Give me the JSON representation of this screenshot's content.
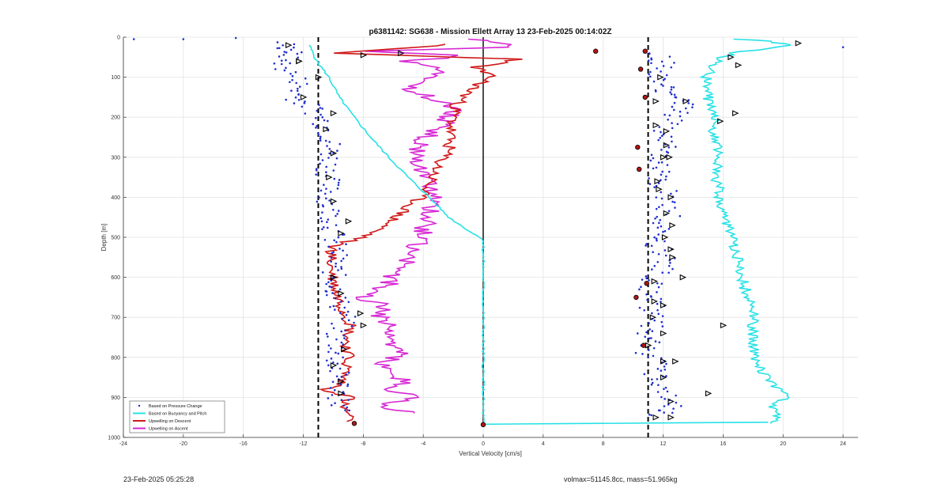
{
  "chart_data": {
    "type": "line",
    "title": "p6381142: SG638 - Mission Ellett Array 13 23-Feb-2025 00:14:02Z",
    "xlabel": "Vertical Velocity [cm/s]",
    "ylabel": "Depth [m]",
    "xlim": [
      -24,
      25
    ],
    "ylim": [
      0,
      1000
    ],
    "y_reversed": true,
    "xticks": [
      -24,
      -20,
      -16,
      -12,
      -8,
      -4,
      0,
      4,
      8,
      12,
      16,
      20,
      24
    ],
    "yticks": [
      0,
      100,
      200,
      300,
      400,
      500,
      600,
      700,
      800,
      900,
      1000
    ],
    "grid": true,
    "legend_placement": "bottom-left",
    "reference_lines": [
      {
        "x": -11,
        "style": "dashed",
        "color": "#000000"
      },
      {
        "x": 11,
        "style": "dashed",
        "color": "#000000"
      },
      {
        "x": 0,
        "style": "solid",
        "color": "#000000",
        "y_range": [
          0,
          970
        ]
      }
    ],
    "series": [
      {
        "name": "Based on Pressure Change",
        "color": "#1f2fd0",
        "style": "points",
        "descent": [
          [
            -13.3,
            15
          ],
          [
            -12.8,
            40
          ],
          [
            -13.5,
            70
          ],
          [
            -12.2,
            110
          ],
          [
            -12.5,
            150
          ],
          [
            -11.3,
            180
          ],
          [
            -10.5,
            220
          ],
          [
            -10.2,
            260
          ],
          [
            -10.2,
            300
          ],
          [
            -10.4,
            340
          ],
          [
            -10.3,
            380
          ],
          [
            -10.3,
            420
          ],
          [
            -10.0,
            460
          ],
          [
            -10.0,
            500
          ],
          [
            -9.8,
            540
          ],
          [
            -10.0,
            580
          ],
          [
            -9.9,
            620
          ],
          [
            -9.7,
            660
          ],
          [
            -9.2,
            700
          ],
          [
            -9.8,
            740
          ],
          [
            -9.7,
            780
          ],
          [
            -9.9,
            820
          ],
          [
            -9.5,
            860
          ],
          [
            -9.6,
            900
          ],
          [
            -9.5,
            940
          ]
        ],
        "ascent": [
          [
            11.5,
            40
          ],
          [
            12.0,
            70
          ],
          [
            11.7,
            110
          ],
          [
            12.0,
            140
          ],
          [
            13.5,
            170
          ],
          [
            12.8,
            200
          ],
          [
            12.0,
            240
          ],
          [
            12.3,
            280
          ],
          [
            11.5,
            320
          ],
          [
            11.8,
            360
          ],
          [
            12.4,
            400
          ],
          [
            12.3,
            440
          ],
          [
            11.9,
            480
          ],
          [
            11.7,
            520
          ],
          [
            12.2,
            560
          ],
          [
            11.3,
            600
          ],
          [
            11.3,
            640
          ],
          [
            11.3,
            680
          ],
          [
            11.4,
            720
          ],
          [
            11.0,
            760
          ],
          [
            11.1,
            800
          ],
          [
            11.6,
            840
          ],
          [
            12.0,
            880
          ],
          [
            12.4,
            920
          ],
          [
            11.5,
            950
          ]
        ],
        "outliers": [
          [
            -23.3,
            5
          ],
          [
            -20.0,
            5
          ],
          [
            -16.5,
            2
          ],
          [
            24.0,
            25
          ]
        ]
      },
      {
        "name": "Based on Buoyancy and Pitch",
        "color": "#27e1e6",
        "style": "line",
        "descent": [
          [
            -11.6,
            20
          ],
          [
            -11.1,
            60
          ],
          [
            -10.3,
            100
          ],
          [
            -9.6,
            150
          ],
          [
            -8.6,
            200
          ],
          [
            -7.5,
            250
          ],
          [
            -6.3,
            300
          ],
          [
            -5.0,
            350
          ],
          [
            -3.6,
            400
          ],
          [
            -2.3,
            450
          ],
          [
            -0.7,
            490
          ],
          [
            0.0,
            505
          ],
          [
            0.0,
            600
          ],
          [
            0.0,
            700
          ],
          [
            0.0,
            800
          ],
          [
            0.0,
            900
          ],
          [
            0.0,
            968
          ]
        ],
        "ascent": [
          [
            19.0,
            965
          ],
          [
            19.5,
            950
          ],
          [
            19.2,
            920
          ],
          [
            20.1,
            900
          ],
          [
            19.8,
            880
          ],
          [
            18.8,
            850
          ],
          [
            18.2,
            800
          ],
          [
            17.9,
            750
          ],
          [
            18.1,
            700
          ],
          [
            17.6,
            650
          ],
          [
            17.3,
            600
          ],
          [
            17.0,
            550
          ],
          [
            16.6,
            500
          ],
          [
            16.1,
            450
          ],
          [
            15.8,
            400
          ],
          [
            15.5,
            350
          ],
          [
            15.8,
            300
          ],
          [
            15.4,
            250
          ],
          [
            15.5,
            200
          ],
          [
            15.0,
            150
          ],
          [
            14.9,
            100
          ],
          [
            15.6,
            60
          ],
          [
            16.5,
            40
          ],
          [
            20.3,
            20
          ],
          [
            19.0,
            10
          ],
          [
            16.7,
            5
          ]
        ]
      },
      {
        "name": "Upwelling on Descent",
        "color": "#d01818",
        "style": "line",
        "values": [
          [
            -2.2,
            18
          ],
          [
            -10.0,
            40
          ],
          [
            2.5,
            55
          ],
          [
            -0.5,
            75
          ],
          [
            0.5,
            100
          ],
          [
            -0.8,
            130
          ],
          [
            -1.8,
            170
          ],
          [
            -2.0,
            200
          ],
          [
            -2.2,
            240
          ],
          [
            -2.3,
            280
          ],
          [
            -3.0,
            320
          ],
          [
            -3.5,
            360
          ],
          [
            -4.2,
            400
          ],
          [
            -5.5,
            440
          ],
          [
            -6.5,
            470
          ],
          [
            -8.0,
            500
          ],
          [
            -10.0,
            520
          ],
          [
            -10.2,
            560
          ],
          [
            -10.0,
            600
          ],
          [
            -9.8,
            640
          ],
          [
            -9.3,
            680
          ],
          [
            -8.8,
            720
          ],
          [
            -9.1,
            760
          ],
          [
            -9.0,
            800
          ],
          [
            -9.2,
            840
          ],
          [
            -9.6,
            870
          ],
          [
            -10.5,
            880
          ],
          [
            -8.8,
            900
          ],
          [
            -9.5,
            920
          ],
          [
            -9.0,
            940
          ],
          [
            -9.1,
            960
          ]
        ]
      },
      {
        "name": "Upwelling on Ascent",
        "color": "#d727d4",
        "style": "line",
        "values": [
          [
            -4.8,
            940
          ],
          [
            -6.8,
            920
          ],
          [
            -4.5,
            900
          ],
          [
            -6.5,
            880
          ],
          [
            -5.0,
            860
          ],
          [
            -6.2,
            840
          ],
          [
            -6.7,
            820
          ],
          [
            -5.5,
            790
          ],
          [
            -6.5,
            760
          ],
          [
            -6.0,
            730
          ],
          [
            -6.9,
            700
          ],
          [
            -6.5,
            670
          ],
          [
            -8.2,
            650
          ],
          [
            -6.4,
            620
          ],
          [
            -6.0,
            590
          ],
          [
            -4.8,
            550
          ],
          [
            -4.2,
            500
          ],
          [
            -3.6,
            450
          ],
          [
            -3.3,
            400
          ],
          [
            -3.8,
            350
          ],
          [
            -4.2,
            320
          ],
          [
            -4.5,
            280
          ],
          [
            -3.8,
            250
          ],
          [
            -2.5,
            210
          ],
          [
            -2.0,
            180
          ],
          [
            -3.6,
            150
          ],
          [
            -4.8,
            130
          ],
          [
            -3.5,
            100
          ],
          [
            -3.0,
            80
          ],
          [
            -5.0,
            60
          ],
          [
            -1.0,
            45
          ],
          [
            -7.5,
            35
          ],
          [
            2.0,
            25
          ],
          [
            1.0,
            15
          ],
          [
            -1.0,
            5
          ]
        ]
      }
    ],
    "markers": {
      "triangles": [
        [
          -12.3,
          60
        ],
        [
          -11.0,
          100
        ],
        [
          -12.0,
          150
        ],
        [
          -10.0,
          190
        ],
        [
          -10.5,
          230
        ],
        [
          -10.0,
          290
        ],
        [
          -10.3,
          350
        ],
        [
          -10.0,
          410
        ],
        [
          -9.0,
          460
        ],
        [
          -9.5,
          490
        ],
        [
          -10.0,
          600
        ],
        [
          -9.5,
          640
        ],
        [
          -8.2,
          690
        ],
        [
          -8.0,
          720
        ],
        [
          -9.3,
          780
        ],
        [
          -10.0,
          820
        ],
        [
          -9.5,
          860
        ],
        [
          -9.5,
          890
        ],
        [
          -5.5,
          40
        ],
        [
          -8.0,
          45
        ],
        [
          11.8,
          100
        ],
        [
          11.5,
          160
        ],
        [
          11.5,
          220
        ],
        [
          12.2,
          270
        ],
        [
          12.0,
          300
        ],
        [
          11.6,
          360
        ],
        [
          12.5,
          400
        ],
        [
          12.6,
          470
        ],
        [
          12.6,
          550
        ],
        [
          11.4,
          610
        ],
        [
          12.0,
          670
        ],
        [
          11.3,
          700
        ],
        [
          12.0,
          740
        ],
        [
          11.0,
          770
        ],
        [
          12.0,
          810
        ],
        [
          12.0,
          850
        ],
        [
          12.5,
          910
        ],
        [
          16.5,
          50
        ],
        [
          13.5,
          160
        ],
        [
          15.8,
          210
        ],
        [
          16.8,
          190
        ],
        [
          12.2,
          235
        ],
        [
          12.4,
          300
        ],
        [
          11.7,
          380
        ],
        [
          12.2,
          440
        ],
        [
          12.1,
          500
        ],
        [
          12.5,
          530
        ],
        [
          11.4,
          660
        ],
        [
          12.5,
          950
        ],
        [
          11.5,
          950
        ],
        [
          15.0,
          890
        ],
        [
          13.3,
          600
        ],
        [
          12.8,
          810
        ],
        [
          16.0,
          720
        ],
        [
          17.0,
          70
        ],
        [
          21.0,
          15
        ],
        [
          -13.0,
          20
        ],
        [
          -12.3,
          60
        ]
      ],
      "red_dots": [
        [
          7.5,
          35
        ],
        [
          10.8,
          35
        ],
        [
          10.5,
          80
        ],
        [
          10.8,
          150
        ],
        [
          10.3,
          275
        ],
        [
          10.4,
          330
        ],
        [
          10.2,
          650
        ],
        [
          10.9,
          615
        ],
        [
          10.7,
          770
        ],
        [
          0.0,
          968
        ],
        [
          -8.6,
          965
        ]
      ]
    }
  },
  "footer": {
    "left": "23-Feb-2025 05:25:28",
    "right": "volmax=51145.8cc, mass=51.965kg"
  }
}
